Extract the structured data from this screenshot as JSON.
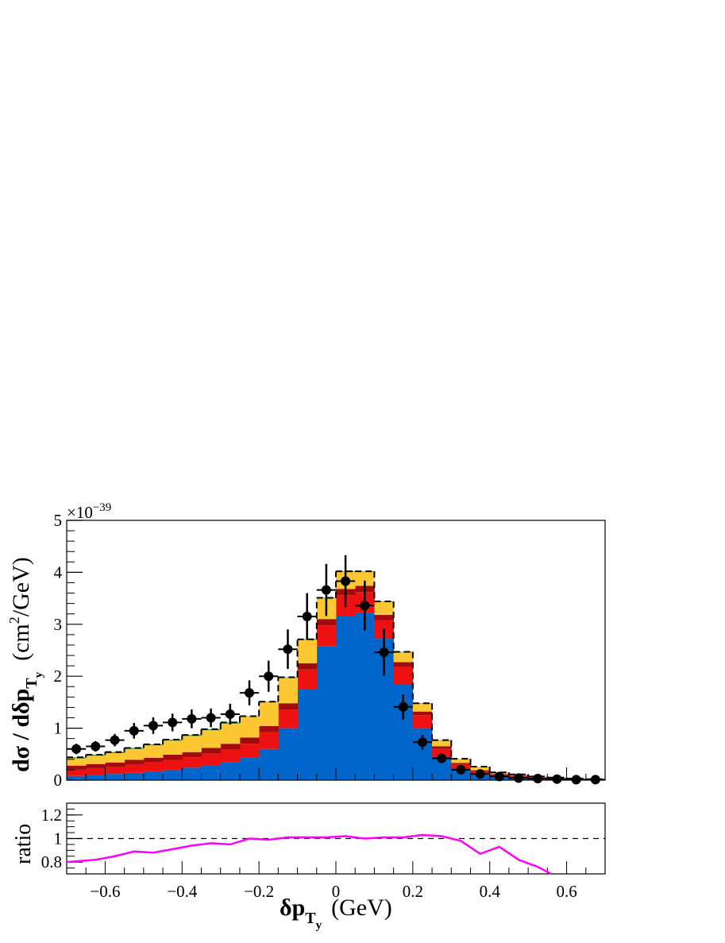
{
  "chart_data": [
    {
      "type": "bar",
      "stacked": true,
      "bins_x_edges": [
        -0.7,
        -0.65,
        -0.6,
        -0.55,
        -0.5,
        -0.45,
        -0.4,
        -0.35,
        -0.3,
        -0.25,
        -0.2,
        -0.15,
        -0.1,
        -0.05,
        0.0,
        0.05,
        0.1,
        0.15,
        0.2,
        0.25,
        0.3,
        0.35,
        0.4,
        0.45,
        0.5,
        0.55,
        0.6,
        0.65,
        0.7
      ],
      "xlim": [
        -0.7,
        0.7
      ],
      "ylim": [
        0,
        5
      ],
      "y_multiplier": "×10",
      "y_multiplier_exponent": "−39",
      "ylabel": "dσ / dδp",
      "ylabel_sub": "T",
      "ylabel_subsub": "y",
      "ylabel_units": "(cm",
      "ylabel_units_sup": "2",
      "ylabel_units_end": "/GeV)",
      "y_ticks": [
        "0",
        "1",
        "2",
        "3",
        "4",
        "5"
      ],
      "series": [
        {
          "color": "#0066cc",
          "values": [
            0.08,
            0.1,
            0.12,
            0.14,
            0.17,
            0.2,
            0.24,
            0.29,
            0.35,
            0.43,
            0.6,
            1.0,
            1.75,
            2.58,
            3.15,
            3.22,
            2.72,
            1.85,
            1.0,
            0.45,
            0.2,
            0.11,
            0.07,
            0.05,
            0.03,
            0.02,
            0.015,
            0.01
          ]
        },
        {
          "color": "#ee1111",
          "values": [
            0.12,
            0.13,
            0.14,
            0.16,
            0.17,
            0.19,
            0.2,
            0.22,
            0.24,
            0.27,
            0.32,
            0.36,
            0.38,
            0.4,
            0.41,
            0.4,
            0.36,
            0.33,
            0.25,
            0.15,
            0.1,
            0.06,
            0.04,
            0.03,
            0.02,
            0.01,
            0.005,
            0.005
          ]
        },
        {
          "color": "#a30b0b",
          "values": [
            0.08,
            0.08,
            0.08,
            0.09,
            0.09,
            0.1,
            0.1,
            0.11,
            0.11,
            0.12,
            0.12,
            0.12,
            0.12,
            0.12,
            0.12,
            0.12,
            0.1,
            0.09,
            0.07,
            0.05,
            0.03,
            0.02,
            0.01,
            0.01,
            0.005,
            0.005,
            0.003,
            0.003
          ]
        },
        {
          "color": "#fbc733",
          "values": [
            0.14,
            0.16,
            0.18,
            0.21,
            0.24,
            0.27,
            0.31,
            0.34,
            0.39,
            0.4,
            0.46,
            0.49,
            0.45,
            0.4,
            0.33,
            0.27,
            0.25,
            0.19,
            0.15,
            0.11,
            0.07,
            0.06,
            0.03,
            0.02,
            0.01,
            0.01,
            0.005,
            0.005
          ]
        },
        {
          "color": "#2aa02a",
          "values": [
            0.02,
            0.02,
            0.02,
            0.02,
            0.02,
            0.02,
            0.02,
            0.02,
            0.02,
            0.01,
            0.01,
            0.01,
            0.01,
            0.01,
            0.01,
            0.01,
            0.01,
            0.01,
            0.01,
            0.01,
            0.005,
            0.005,
            0.0,
            0.0,
            0.0,
            0.0,
            0.0,
            0.0
          ]
        }
      ],
      "total_prediction": [
        0.44,
        0.49,
        0.54,
        0.62,
        0.69,
        0.78,
        0.87,
        0.98,
        1.11,
        1.23,
        1.51,
        1.98,
        2.71,
        3.51,
        4.02,
        4.02,
        3.44,
        2.47,
        1.48,
        0.77,
        0.41,
        0.26,
        0.15,
        0.11,
        0.07,
        0.05,
        0.03,
        0.02
      ],
      "data_points": {
        "x": [
          -0.675,
          -0.625,
          -0.575,
          -0.525,
          -0.475,
          -0.425,
          -0.375,
          -0.325,
          -0.275,
          -0.225,
          -0.175,
          -0.125,
          -0.075,
          -0.025,
          0.025,
          0.075,
          0.125,
          0.175,
          0.225,
          0.275,
          0.325,
          0.375,
          0.425,
          0.475,
          0.525,
          0.575,
          0.625,
          0.675
        ],
        "y": [
          0.6,
          0.65,
          0.77,
          0.95,
          1.05,
          1.11,
          1.18,
          1.2,
          1.27,
          1.68,
          2.0,
          2.52,
          3.15,
          3.66,
          3.83,
          3.36,
          2.46,
          1.41,
          0.73,
          0.42,
          0.2,
          0.12,
          0.07,
          0.04,
          0.03,
          0.02,
          0.01,
          0.01
        ],
        "yerr": [
          0.1,
          0.1,
          0.12,
          0.15,
          0.16,
          0.17,
          0.18,
          0.18,
          0.2,
          0.24,
          0.3,
          0.38,
          0.45,
          0.5,
          0.5,
          0.48,
          0.45,
          0.24,
          0.14,
          0.09,
          0.05,
          0.04,
          0.03,
          0.02,
          0.02,
          0.01,
          0.01,
          0.01
        ]
      }
    },
    {
      "type": "line",
      "ylabel": "ratio",
      "xlabel": "δp",
      "xlabel_sub": "T",
      "xlabel_subsub": "y",
      "xlabel_units": "(GeV)",
      "xlim": [
        -0.7,
        0.7
      ],
      "ylim": [
        0.7,
        1.3
      ],
      "y_ticks": [
        "0.8",
        "1",
        "1.2"
      ],
      "x_ticks": [
        "−0.6",
        "−0.4",
        "−0.2",
        "0",
        "0.2",
        "0.4",
        "0.6"
      ],
      "reference_line": 1.0,
      "line_color": "#ff00ff",
      "x": [
        -0.7,
        -0.625,
        -0.575,
        -0.525,
        -0.475,
        -0.425,
        -0.375,
        -0.325,
        -0.275,
        -0.225,
        -0.175,
        -0.125,
        -0.075,
        -0.025,
        0.025,
        0.075,
        0.125,
        0.175,
        0.225,
        0.275,
        0.325,
        0.375,
        0.425,
        0.475,
        0.525,
        0.56
      ],
      "values": [
        0.8,
        0.82,
        0.85,
        0.89,
        0.88,
        0.91,
        0.94,
        0.96,
        0.95,
        1.0,
        0.99,
        1.01,
        1.01,
        1.01,
        1.02,
        1.0,
        1.01,
        1.01,
        1.03,
        1.02,
        0.98,
        0.87,
        0.93,
        0.82,
        0.76,
        0.7
      ]
    }
  ]
}
